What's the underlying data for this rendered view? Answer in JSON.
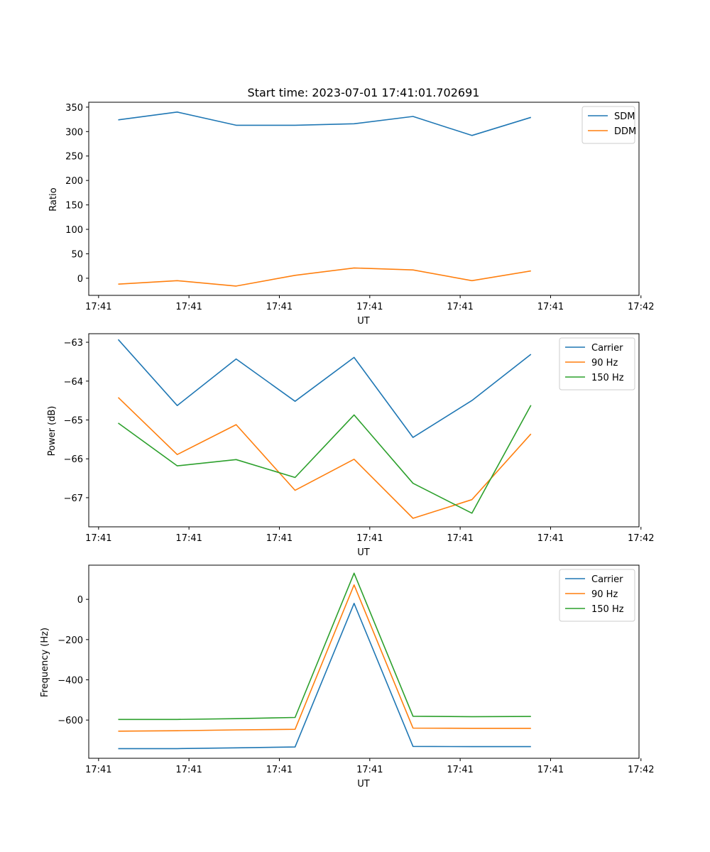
{
  "chart_data": [
    {
      "type": "line",
      "title": "Start time: 2023-07-01 17:41:01.702691",
      "xlabel": "UT",
      "ylabel": "Ratio",
      "x": [
        0.2,
        0.8,
        1.4,
        2.0,
        2.6,
        3.2,
        3.8,
        4.4
      ],
      "xlim": [
        -0.1,
        5.5
      ],
      "xticks": [
        0,
        0.92,
        1.84,
        2.76,
        3.68,
        4.6,
        5.52
      ],
      "xtick_labels": [
        "17:41",
        "17:41",
        "17:41",
        "17:41",
        "17:41",
        "17:41",
        "17:42"
      ],
      "ylim": [
        -35,
        360
      ],
      "yticks": [
        0,
        50,
        100,
        150,
        200,
        250,
        300,
        350
      ],
      "ytick_labels": [
        "0",
        "50",
        "100",
        "150",
        "200",
        "250",
        "300",
        "350"
      ],
      "legend_loc": "top-right",
      "series": [
        {
          "name": "SDM",
          "color": "#1f77b4",
          "values": [
            324,
            340,
            313,
            313,
            316,
            331,
            292,
            329
          ]
        },
        {
          "name": "DDM",
          "color": "#ff7f0e",
          "values": [
            -12,
            -5,
            -16,
            6,
            21,
            17,
            -5,
            15
          ]
        }
      ]
    },
    {
      "type": "line",
      "title": "",
      "xlabel": "UT",
      "ylabel": "Power (dB)",
      "x": [
        0.2,
        0.8,
        1.4,
        2.0,
        2.6,
        3.2,
        3.8,
        4.4
      ],
      "xlim": [
        -0.1,
        5.5
      ],
      "xticks": [
        0,
        0.92,
        1.84,
        2.76,
        3.68,
        4.6,
        5.52
      ],
      "xtick_labels": [
        "17:41",
        "17:41",
        "17:41",
        "17:41",
        "17:41",
        "17:41",
        "17:42"
      ],
      "ylim": [
        -67.75,
        -62.78
      ],
      "yticks": [
        -67,
        -66,
        -65,
        -64,
        -63
      ],
      "ytick_labels": [
        "−67",
        "−66",
        "−65",
        "−64",
        "−63"
      ],
      "legend_loc": "top-right",
      "series": [
        {
          "name": "Carrier",
          "color": "#1f77b4",
          "values": [
            -62.93,
            -64.63,
            -63.43,
            -64.52,
            -63.39,
            -65.45,
            -64.5,
            -63.31
          ]
        },
        {
          "name": "90 Hz",
          "color": "#ff7f0e",
          "values": [
            -64.42,
            -65.89,
            -65.12,
            -66.81,
            -66.01,
            -67.53,
            -67.05,
            -65.36
          ]
        },
        {
          "name": "150 Hz",
          "color": "#2ca02c",
          "values": [
            -65.08,
            -66.18,
            -66.02,
            -66.48,
            -64.87,
            -66.63,
            -67.4,
            -64.62
          ]
        }
      ]
    },
    {
      "type": "line",
      "title": "",
      "xlabel": "UT",
      "ylabel": "Frequency (Hz)",
      "x": [
        0.2,
        0.8,
        1.4,
        2.0,
        2.6,
        3.2,
        3.8,
        4.4
      ],
      "xlim": [
        -0.1,
        5.5
      ],
      "xticks": [
        0,
        0.92,
        1.84,
        2.76,
        3.68,
        4.6,
        5.52
      ],
      "xtick_labels": [
        "17:41",
        "17:41",
        "17:41",
        "17:41",
        "17:41",
        "17:41",
        "17:42"
      ],
      "ylim": [
        -790,
        170
      ],
      "yticks": [
        -600,
        -400,
        -200,
        0
      ],
      "ytick_labels": [
        "−600",
        "−400",
        "−200",
        "0"
      ],
      "legend_loc": "top-right",
      "series": [
        {
          "name": "Carrier",
          "color": "#1f77b4",
          "values": [
            -742,
            -742,
            -738,
            -734,
            -20,
            -731,
            -732,
            -732
          ]
        },
        {
          "name": "90 Hz",
          "color": "#ff7f0e",
          "values": [
            -655,
            -653,
            -649,
            -646,
            72,
            -640,
            -641,
            -641
          ]
        },
        {
          "name": "150 Hz",
          "color": "#2ca02c",
          "values": [
            -597,
            -597,
            -593,
            -587,
            130,
            -581,
            -583,
            -582
          ]
        }
      ]
    }
  ]
}
